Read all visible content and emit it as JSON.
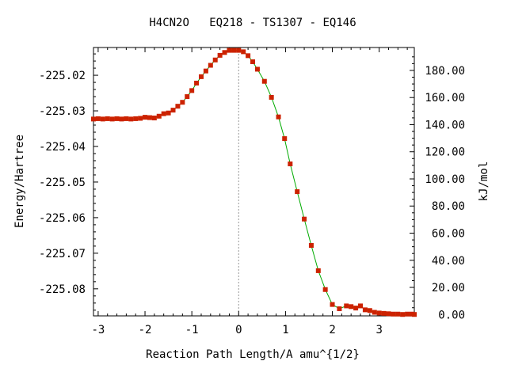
{
  "chart_data": {
    "type": "line",
    "title": "H4CN2O   EQ218 - TS1307 - EQ146",
    "xlabel": "Reaction Path Length/A amu^{1/2}",
    "ylabel": "Energy/Hartree",
    "y2label": "kJ/mol",
    "xlim": [
      -3.1,
      3.75
    ],
    "ylim": [
      -225.0876,
      -225.0122
    ],
    "y2lim": [
      -1.0,
      196.9
    ],
    "x_ticks": [
      "-3",
      "-2",
      "-1",
      "0",
      "1",
      "2",
      "3"
    ],
    "y_ticks": [
      "-225.02",
      "-225.03",
      "-225.04",
      "-225.05",
      "-225.06",
      "-225.07",
      "-225.08"
    ],
    "y2_ticks": [
      "0.00",
      "20.00",
      "40.00",
      "60.00",
      "80.00",
      "100.00",
      "120.00",
      "140.00",
      "160.00",
      "180.00"
    ],
    "ts_marker_x": 0,
    "grid": false,
    "colors": {
      "line": "#00aa00",
      "marker": "#cc2200",
      "ts_line": "#999999",
      "axis": "#000000"
    },
    "series": [
      {
        "x": [
          -3.1,
          -3.0,
          -2.9,
          -2.8,
          -2.7,
          -2.6,
          -2.5,
          -2.4,
          -2.3,
          -2.2,
          -2.1,
          -2.0,
          -1.9,
          -1.8,
          -1.7,
          -1.6,
          -1.5,
          -1.4,
          -1.3,
          -1.2,
          -1.1,
          -1.0,
          -0.9,
          -0.8,
          -0.7,
          -0.6,
          -0.5,
          -0.4,
          -0.3,
          -0.2,
          -0.1,
          0.0,
          0.1,
          0.2,
          0.3,
          0.4,
          0.55,
          0.7,
          0.85,
          0.98,
          1.1,
          1.25,
          1.4,
          1.55,
          1.7,
          1.85,
          2.0,
          2.15,
          2.3,
          2.4,
          2.5,
          2.6,
          2.7,
          2.8,
          2.9,
          3.0,
          3.1,
          3.2,
          3.3,
          3.4,
          3.5,
          3.6,
          3.7,
          3.75
        ],
        "y": [
          -225.0323,
          -225.0322,
          -225.0323,
          -225.0322,
          -225.0323,
          -225.0322,
          -225.0323,
          -225.0322,
          -225.0323,
          -225.0322,
          -225.0321,
          -225.0318,
          -225.0319,
          -225.032,
          -225.0315,
          -225.0308,
          -225.0306,
          -225.0298,
          -225.0287,
          -225.0276,
          -225.026,
          -225.0243,
          -225.0222,
          -225.0204,
          -225.0188,
          -225.0172,
          -225.0157,
          -225.0144,
          -225.0136,
          -225.013,
          -225.013,
          -225.013,
          -225.0134,
          -225.0145,
          -225.0162,
          -225.0183,
          -225.0217,
          -225.0262,
          -225.0317,
          -225.0378,
          -225.0449,
          -225.0527,
          -225.0604,
          -225.0678,
          -225.0749,
          -225.0802,
          -225.0844,
          -225.0856,
          -225.0848,
          -225.085,
          -225.0854,
          -225.0848,
          -225.0859,
          -225.0861,
          -225.0866,
          -225.0868,
          -225.0869,
          -225.087,
          -225.0871,
          -225.0871,
          -225.0872,
          -225.0871,
          -225.0871,
          -225.0872
        ]
      }
    ]
  }
}
